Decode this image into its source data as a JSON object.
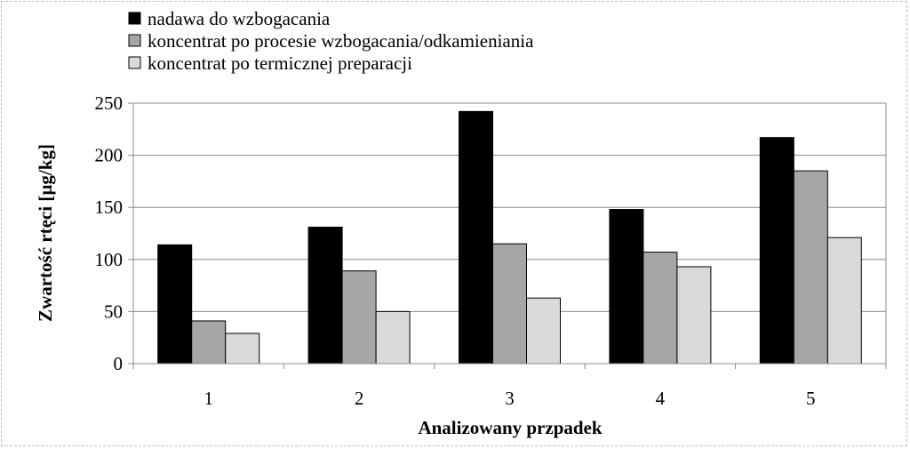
{
  "chart_data": {
    "type": "bar",
    "title": "",
    "xlabel": "Analizowany przpadek",
    "ylabel": "Zwartość rtęci [µg/kg]",
    "categories": [
      "1",
      "2",
      "3",
      "4",
      "5"
    ],
    "ylim": [
      0,
      250
    ],
    "yticks": [
      0,
      50,
      100,
      150,
      200,
      250
    ],
    "grid": true,
    "legend_position": "top-left",
    "series": [
      {
        "name": "nadawa do wzbogacania",
        "color": "#000000",
        "values": [
          114,
          131,
          242,
          148,
          217
        ]
      },
      {
        "name": "koncentrat po procesie wzbogacania/odkamieniania",
        "color": "#a6a6a6",
        "values": [
          41,
          89,
          115,
          107,
          185
        ]
      },
      {
        "name": "koncentrat po termicznej preparacji",
        "color": "#d9d9d9",
        "values": [
          29,
          50,
          63,
          93,
          121
        ]
      }
    ]
  }
}
